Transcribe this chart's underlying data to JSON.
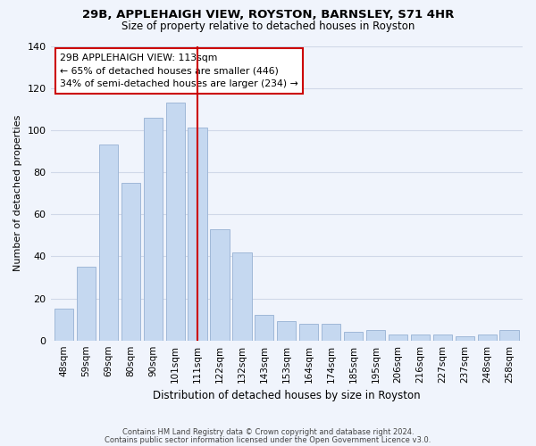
{
  "title1": "29B, APPLEHAIGH VIEW, ROYSTON, BARNSLEY, S71 4HR",
  "title2": "Size of property relative to detached houses in Royston",
  "xlabel": "Distribution of detached houses by size in Royston",
  "ylabel": "Number of detached properties",
  "categories": [
    "48sqm",
    "59sqm",
    "69sqm",
    "80sqm",
    "90sqm",
    "101sqm",
    "111sqm",
    "122sqm",
    "132sqm",
    "143sqm",
    "153sqm",
    "164sqm",
    "174sqm",
    "185sqm",
    "195sqm",
    "206sqm",
    "216sqm",
    "227sqm",
    "237sqm",
    "248sqm",
    "258sqm"
  ],
  "values": [
    15,
    35,
    93,
    75,
    106,
    113,
    101,
    53,
    42,
    12,
    9,
    8,
    8,
    4,
    5,
    3,
    3,
    3,
    2,
    3,
    5
  ],
  "bar_color": "#c5d8f0",
  "bar_edge_color": "#a0b8d8",
  "highlight_index": 6,
  "highlight_line_color": "#cc0000",
  "annotation_line1": "29B APPLEHAIGH VIEW: 113sqm",
  "annotation_line2": "← 65% of detached houses are smaller (446)",
  "annotation_line3": "34% of semi-detached houses are larger (234) →",
  "annotation_box_edgecolor": "#cc0000",
  "ylim": [
    0,
    140
  ],
  "yticks": [
    0,
    20,
    40,
    60,
    80,
    100,
    120,
    140
  ],
  "footer1": "Contains HM Land Registry data © Crown copyright and database right 2024.",
  "footer2": "Contains public sector information licensed under the Open Government Licence v3.0.",
  "bg_color": "#f0f4fc",
  "grid_color": "#d0d8e8"
}
